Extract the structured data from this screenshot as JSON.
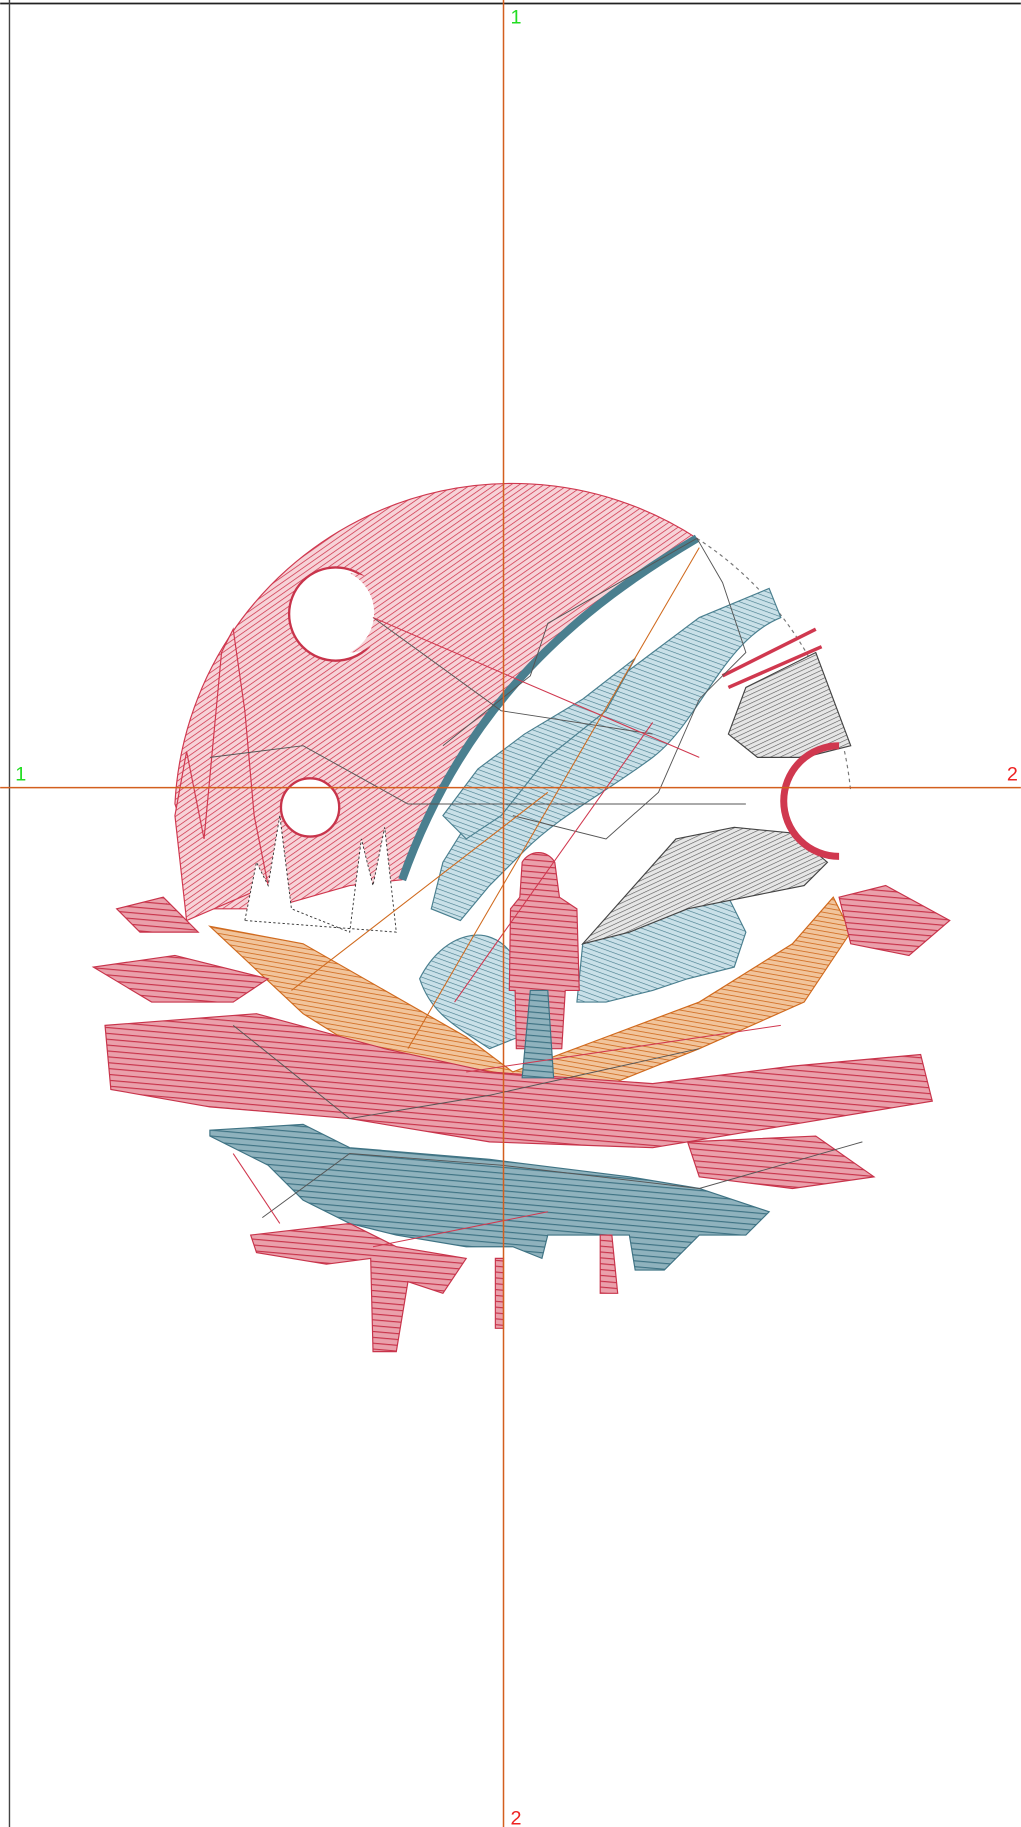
{
  "guides": {
    "top": "1",
    "bottom": "2",
    "left": "1",
    "right": "2"
  }
}
